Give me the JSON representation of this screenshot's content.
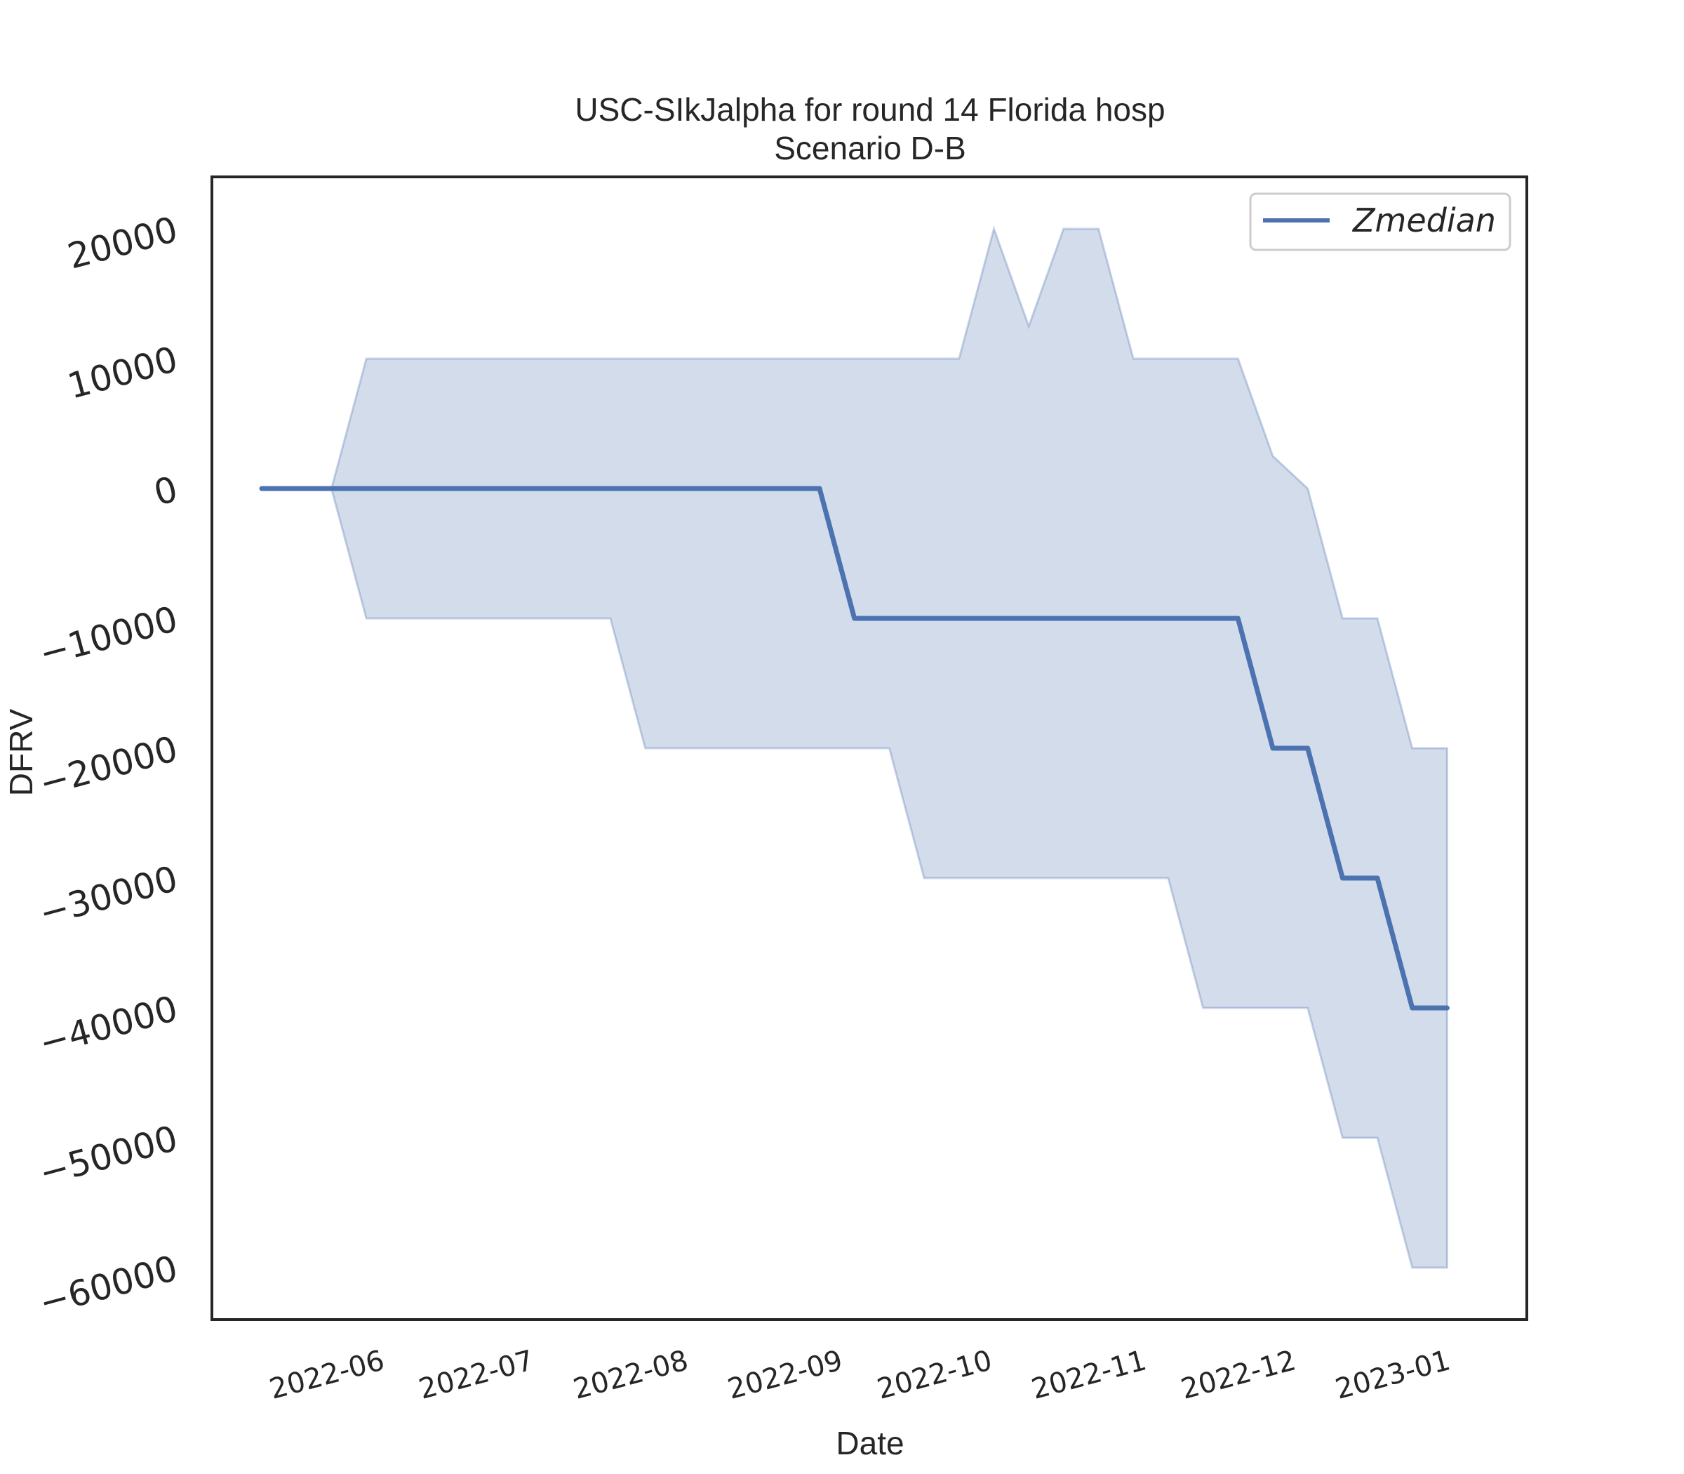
{
  "chart_data": {
    "type": "line",
    "title": "USC-SIkJalpha for round 14 Florida hosp",
    "subtitle": "Scenario D-B",
    "xlabel": "Date",
    "ylabel": "DFRV",
    "xlim": [
      "2022-05-01",
      "2023-01-20"
    ],
    "ylim": [
      -64000,
      24000
    ],
    "x_ticks": [
      "2022-06",
      "2022-07",
      "2022-08",
      "2022-09",
      "2022-10",
      "2022-11",
      "2022-12",
      "2023-01"
    ],
    "y_ticks": [
      20000,
      10000,
      0,
      -10000,
      -20000,
      -30000,
      -40000,
      -50000,
      -60000
    ],
    "y_tick_labels": [
      "20000",
      "10000",
      "0",
      "−10000",
      "−20000",
      "−30000",
      "−40000",
      "−50000",
      "−60000"
    ],
    "grid": false,
    "legend": {
      "position": "top-right",
      "entries": [
        "Zmedian"
      ]
    },
    "series": [
      {
        "name": "Zmedian",
        "color": "#4c72b0",
        "x": [
          "2022-05-11",
          "2022-05-25",
          "2022-06-01",
          "2022-06-08",
          "2022-06-15",
          "2022-06-22",
          "2022-06-29",
          "2022-07-06",
          "2022-07-13",
          "2022-07-20",
          "2022-07-27",
          "2022-08-03",
          "2022-08-10",
          "2022-08-17",
          "2022-08-24",
          "2022-08-31",
          "2022-09-07",
          "2022-09-14",
          "2022-09-21",
          "2022-09-28",
          "2022-10-05",
          "2022-10-12",
          "2022-10-19",
          "2022-10-26",
          "2022-11-02",
          "2022-11-09",
          "2022-11-16",
          "2022-11-23",
          "2022-11-30",
          "2022-12-07",
          "2022-12-14",
          "2022-12-21",
          "2022-12-28",
          "2023-01-04"
        ],
        "y": [
          0,
          0,
          0,
          0,
          0,
          0,
          0,
          0,
          0,
          0,
          0,
          0,
          0,
          0,
          0,
          0,
          -10000,
          -10000,
          -10000,
          -10000,
          -10000,
          -10000,
          -10000,
          -10000,
          -10000,
          -10000,
          -10000,
          -10000,
          -20000,
          -20000,
          -30000,
          -30000,
          -40000,
          -40000
        ]
      }
    ],
    "band": {
      "color": "#4c72b0",
      "x": [
        "2022-05-25",
        "2022-06-01",
        "2022-06-08",
        "2022-06-15",
        "2022-06-22",
        "2022-06-29",
        "2022-07-06",
        "2022-07-13",
        "2022-07-20",
        "2022-07-27",
        "2022-08-03",
        "2022-08-10",
        "2022-08-17",
        "2022-08-24",
        "2022-08-31",
        "2022-09-07",
        "2022-09-14",
        "2022-09-21",
        "2022-09-28",
        "2022-10-05",
        "2022-10-12",
        "2022-10-19",
        "2022-10-26",
        "2022-11-02",
        "2022-11-09",
        "2022-11-16",
        "2022-11-23",
        "2022-11-30",
        "2022-12-07",
        "2022-12-14",
        "2022-12-21",
        "2022-12-28",
        "2023-01-04"
      ],
      "upper": [
        0,
        10000,
        10000,
        10000,
        10000,
        10000,
        10000,
        10000,
        10000,
        10000,
        10000,
        10000,
        10000,
        10000,
        10000,
        10000,
        10000,
        10000,
        10000,
        20000,
        12500,
        20000,
        20000,
        10000,
        10000,
        10000,
        10000,
        2500,
        0,
        -10000,
        -10000,
        -20000,
        -20000
      ],
      "lower": [
        0,
        -10000,
        -10000,
        -10000,
        -10000,
        -10000,
        -10000,
        -10000,
        -10000,
        -20000,
        -20000,
        -20000,
        -20000,
        -20000,
        -20000,
        -20000,
        -20000,
        -30000,
        -30000,
        -30000,
        -30000,
        -30000,
        -30000,
        -30000,
        -30000,
        -40000,
        -40000,
        -40000,
        -40000,
        -50000,
        -50000,
        -60000,
        -60000
      ]
    }
  }
}
